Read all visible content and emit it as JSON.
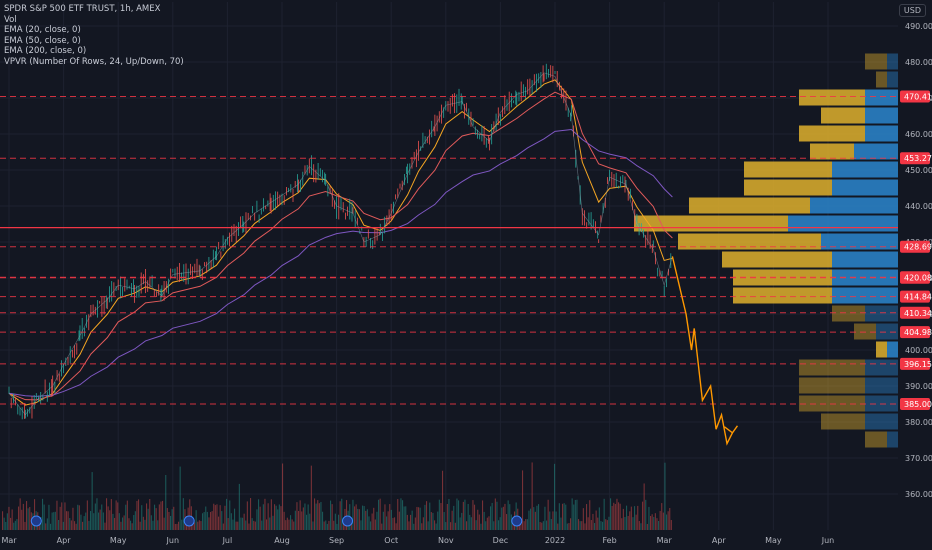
{
  "header": {
    "title": "SPDR S&P 500 ETF TRUST, 1h, AMEX",
    "indicators": [
      "Vol",
      "EMA (20, close, 0)",
      "EMA (50, close, 0)",
      "EMA (200, close, 0)",
      "VPVR (Number Of Rows, 24, Up/Down, 70)"
    ],
    "currency": "USD"
  },
  "colors": {
    "background": "#131722",
    "grid": "#1e2230",
    "up": "#26a69a",
    "down": "#ef5350",
    "ema20": "#f5a623",
    "ema50": "#e05a5a",
    "ema200": "#7e57c2",
    "vp_up": "#d4a72c",
    "vp_down": "#2a7fc4",
    "level_line": "#f23645",
    "projection": "#ff9800",
    "axis_text": "#b2b5be"
  },
  "chart_data": {
    "type": "line",
    "title": "SPDR S&P 500 ETF TRUST, 1h, AMEX",
    "x_labels": [
      "Mar",
      "Apr",
      "May",
      "Jun",
      "Jul",
      "Aug",
      "Sep",
      "Oct",
      "Nov",
      "Dec",
      "2022",
      "Feb",
      "Mar",
      "Apr",
      "May",
      "Jun"
    ],
    "x_positions": [
      0,
      1,
      2,
      3,
      4,
      5,
      6,
      7,
      8,
      9,
      10,
      11,
      12,
      13,
      14,
      15
    ],
    "ylim": [
      350,
      495
    ],
    "y_ticks": [
      360,
      370,
      380,
      390,
      400,
      410,
      420,
      430,
      440,
      450,
      460,
      470,
      480,
      490
    ],
    "price_series": {
      "name": "SPY",
      "x": [
        0,
        0.3,
        0.5,
        0.8,
        1,
        1.3,
        1.5,
        1.8,
        2,
        2.3,
        2.5,
        2.8,
        3,
        3.5,
        3.8,
        4,
        4.3,
        4.5,
        4.8,
        5,
        5.3,
        5.5,
        5.8,
        6,
        6.3,
        6.5,
        6.8,
        7,
        7.3,
        7.5,
        7.8,
        8,
        8.3,
        8.5,
        8.8,
        9,
        9.3,
        9.5,
        9.8,
        10,
        10.3,
        10.5,
        10.8,
        11,
        11.3,
        11.5,
        11.8,
        12,
        12.15
      ],
      "y": [
        388,
        382,
        386,
        390,
        396,
        404,
        410,
        414,
        418,
        417,
        419,
        415,
        421,
        422,
        426,
        431,
        435,
        438,
        441,
        443,
        446,
        451,
        447,
        440,
        438,
        430,
        432,
        438,
        449,
        455,
        462,
        468,
        469,
        462,
        458,
        466,
        471,
        472,
        477,
        476,
        465,
        438,
        432,
        448,
        446,
        435,
        428,
        418,
        426
      ]
    },
    "projection": {
      "name": "",
      "x": [
        12.15,
        12.4,
        12.5,
        12.55,
        12.7,
        12.85,
        12.95,
        13.05,
        13.15,
        13.25
      ],
      "y": [
        426,
        410,
        400,
        406,
        386,
        390,
        378,
        382,
        374,
        377
      ]
    },
    "horizontal_levels": [
      470.41,
      453.27,
      428.69,
      420.21,
      420.08,
      414.84,
      410.34,
      404.98,
      396.15,
      385.0
    ],
    "current_price_line": 434,
    "price_labels": [
      "470.41",
      "453.27",
      "428.69",
      "420.21",
      "420.08",
      "414.84",
      "410.34",
      "404.98",
      "396.15",
      "385.00"
    ],
    "volume_profile": [
      {
        "price": 480,
        "up": 2,
        "down": 1
      },
      {
        "price": 475,
        "up": 1,
        "down": 1
      },
      {
        "price": 470,
        "up": 6,
        "down": 3
      },
      {
        "price": 465,
        "up": 4,
        "down": 3
      },
      {
        "price": 460,
        "up": 6,
        "down": 3
      },
      {
        "price": 455,
        "up": 4,
        "down": 4
      },
      {
        "price": 450,
        "up": 8,
        "down": 6
      },
      {
        "price": 445,
        "up": 8,
        "down": 6
      },
      {
        "price": 440,
        "up": 11,
        "down": 8
      },
      {
        "price": 435,
        "up": 14,
        "down": 10
      },
      {
        "price": 430,
        "up": 13,
        "down": 7
      },
      {
        "price": 425,
        "up": 10,
        "down": 6
      },
      {
        "price": 420,
        "up": 9,
        "down": 6
      },
      {
        "price": 415,
        "up": 9,
        "down": 6
      },
      {
        "price": 410,
        "up": 3,
        "down": 3
      },
      {
        "price": 405,
        "up": 2,
        "down": 2
      },
      {
        "price": 400,
        "up": 1,
        "down": 1
      },
      {
        "price": 395,
        "up": 6,
        "down": 3
      },
      {
        "price": 390,
        "up": 6,
        "down": 3
      },
      {
        "price": 385,
        "up": 6,
        "down": 3
      },
      {
        "price": 380,
        "up": 4,
        "down": 3
      },
      {
        "price": 375,
        "up": 2,
        "down": 1
      }
    ],
    "volume_markers": [
      0.5,
      3.3,
      6.2,
      9.3
    ]
  }
}
